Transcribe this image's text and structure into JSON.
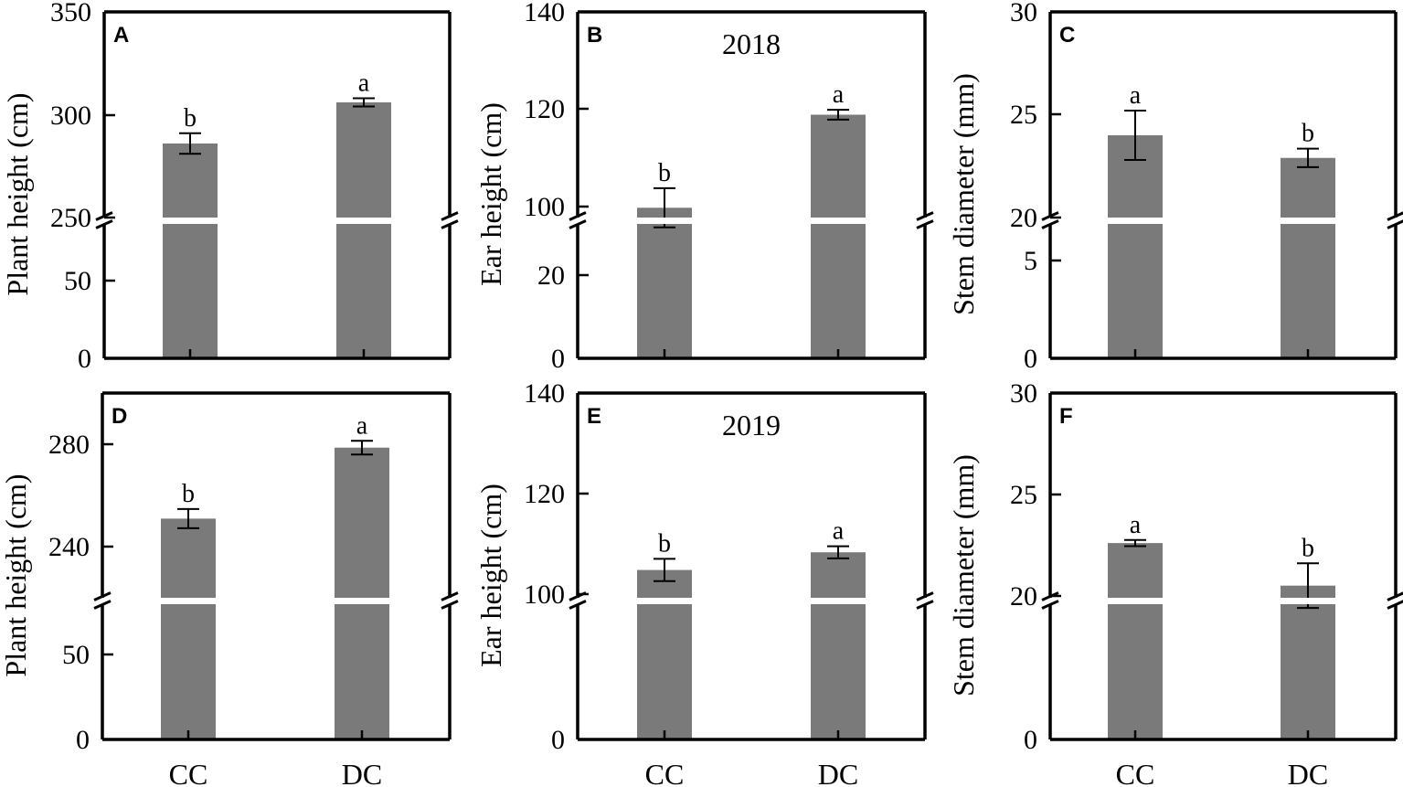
{
  "chart_data": [
    {
      "type": "bar",
      "panel": "A",
      "year": "",
      "categories": [
        "CC",
        "DC"
      ],
      "values": [
        286,
        306
      ],
      "errors": [
        5,
        2
      ],
      "letters": [
        "b",
        "a"
      ],
      "ylabel": "Plant height (cm)",
      "axis_break": true,
      "lower_range": [
        0,
        80
      ],
      "upper_range": [
        250,
        350
      ],
      "lower_ticks": [
        "0",
        "50"
      ],
      "upper_ticks": [
        "250",
        "300",
        "350"
      ],
      "show_xlabels": false
    },
    {
      "type": "bar",
      "panel": "B",
      "year": "2018",
      "categories": [
        "CC",
        "DC"
      ],
      "values": [
        100,
        119
      ],
      "errors": [
        4,
        1
      ],
      "letters": [
        "b",
        "a"
      ],
      "ylabel": "Ear height (cm)",
      "axis_break": true,
      "lower_range": [
        0,
        37
      ],
      "upper_range": [
        98,
        140
      ],
      "lower_ticks": [
        "0",
        "20"
      ],
      "upper_ticks": [
        "100",
        "120",
        "140"
      ],
      "show_xlabels": false
    },
    {
      "type": "bar",
      "panel": "C",
      "year": "",
      "categories": [
        "CC",
        "DC"
      ],
      "values": [
        24,
        22.9
      ],
      "errors": [
        1.2,
        0.45
      ],
      "letters": [
        "a",
        "b"
      ],
      "ylabel": "Stem diameter (mm)",
      "axis_break": true,
      "lower_range": [
        0,
        7
      ],
      "upper_range": [
        20,
        30
      ],
      "lower_ticks": [
        "0",
        "5"
      ],
      "upper_ticks": [
        "20",
        "25",
        "30"
      ],
      "show_xlabels": false
    },
    {
      "type": "bar",
      "panel": "D",
      "year": "",
      "categories": [
        "CC",
        "DC"
      ],
      "values": [
        249,
        275
      ],
      "errors": [
        3.5,
        2.5
      ],
      "letters": [
        "b",
        "a"
      ],
      "ylabel": "Plant height (cm)",
      "axis_break": true,
      "lower_range": [
        0,
        90
      ],
      "upper_range": [
        220,
        295
      ],
      "lower_ticks": [
        "0",
        "50"
      ],
      "upper_ticks": [
        "240",
        "280"
      ],
      "show_xlabels": true
    },
    {
      "type": "bar",
      "panel": "E",
      "year": "2019",
      "categories": [
        "CC",
        "DC"
      ],
      "values": [
        105,
        108.5
      ],
      "errors": [
        2.2,
        1.2
      ],
      "letters": [
        "b",
        "a"
      ],
      "ylabel": "Ear height (cm)",
      "axis_break": true,
      "lower_range": [
        0,
        95
      ],
      "upper_range": [
        99.5,
        140
      ],
      "lower_ticks": [
        "0"
      ],
      "upper_ticks": [
        "100",
        "120",
        "140"
      ],
      "show_xlabels": true
    },
    {
      "type": "bar",
      "panel": "F",
      "year": "",
      "categories": [
        "CC",
        "DC"
      ],
      "values": [
        22.6,
        20.5
      ],
      "errors": [
        0.15,
        1.1
      ],
      "letters": [
        "a",
        "b"
      ],
      "ylabel": "Stem diameter (mm)",
      "axis_break": true,
      "lower_range": [
        0,
        19
      ],
      "upper_range": [
        19.9,
        30
      ],
      "lower_ticks": [
        "0"
      ],
      "upper_ticks": [
        "20",
        "25",
        "30"
      ],
      "show_xlabels": true
    }
  ],
  "colors": {
    "bar": "#7a7a7a",
    "axis": "#000000",
    "background": "#ffffff"
  }
}
